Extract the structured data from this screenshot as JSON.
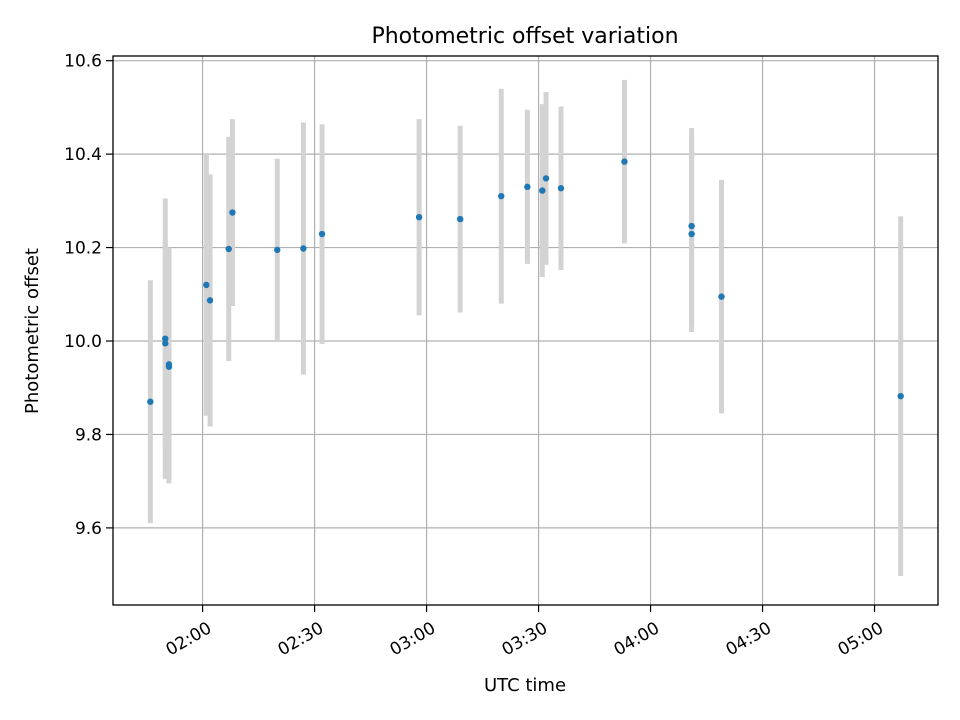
{
  "chart_data": {
    "type": "scatter",
    "title": "Photometric offset variation",
    "xlabel": "UTC time",
    "ylabel": "Photometric offset",
    "xlim": [
      "01:36",
      "05:17"
    ],
    "ylim": [
      9.435,
      10.61
    ],
    "xticks": [
      "02:00",
      "02:30",
      "03:00",
      "03:30",
      "04:00",
      "04:30",
      "05:00"
    ],
    "yticks": [
      9.6,
      9.8,
      10.0,
      10.2,
      10.4,
      10.6
    ],
    "ytick_labels": [
      "9.6",
      "9.8",
      "10.0",
      "10.2",
      "10.4",
      "10.6"
    ],
    "grid": true,
    "colors": {
      "points": "#1f77b4",
      "errorbars": "#d3d3d3",
      "grid": "#b0b0b0"
    },
    "points": [
      {
        "x": "01:46",
        "y": 9.87,
        "err": 0.26
      },
      {
        "x": "01:50",
        "y": 10.005,
        "err": 0.3
      },
      {
        "x": "01:50",
        "y": 9.995,
        "err": 0.22
      },
      {
        "x": "01:51",
        "y": 9.95,
        "err": 0.25
      },
      {
        "x": "01:51",
        "y": 9.945,
        "err": 0.25
      },
      {
        "x": "02:01",
        "y": 10.12,
        "err": 0.28
      },
      {
        "x": "02:02",
        "y": 10.087,
        "err": 0.27
      },
      {
        "x": "02:07",
        "y": 10.197,
        "err": 0.24
      },
      {
        "x": "02:08",
        "y": 10.275,
        "err": 0.2
      },
      {
        "x": "02:20",
        "y": 10.195,
        "err": 0.195
      },
      {
        "x": "02:27",
        "y": 10.198,
        "err": 0.27
      },
      {
        "x": "02:32",
        "y": 10.229,
        "err": 0.235
      },
      {
        "x": "02:58",
        "y": 10.265,
        "err": 0.21
      },
      {
        "x": "03:09",
        "y": 10.261,
        "err": 0.2
      },
      {
        "x": "03:20",
        "y": 10.31,
        "err": 0.23
      },
      {
        "x": "03:27",
        "y": 10.33,
        "err": 0.165
      },
      {
        "x": "03:31",
        "y": 10.322,
        "err": 0.185
      },
      {
        "x": "03:32",
        "y": 10.348,
        "err": 0.185
      },
      {
        "x": "03:36",
        "y": 10.327,
        "err": 0.175
      },
      {
        "x": "03:53",
        "y": 10.384,
        "err": 0.175
      },
      {
        "x": "04:11",
        "y": 10.246,
        "err": 0.21
      },
      {
        "x": "04:11",
        "y": 10.229,
        "err": 0.21
      },
      {
        "x": "04:19",
        "y": 10.095,
        "err": 0.25
      },
      {
        "x": "05:07",
        "y": 9.882,
        "err": 0.385
      }
    ]
  }
}
